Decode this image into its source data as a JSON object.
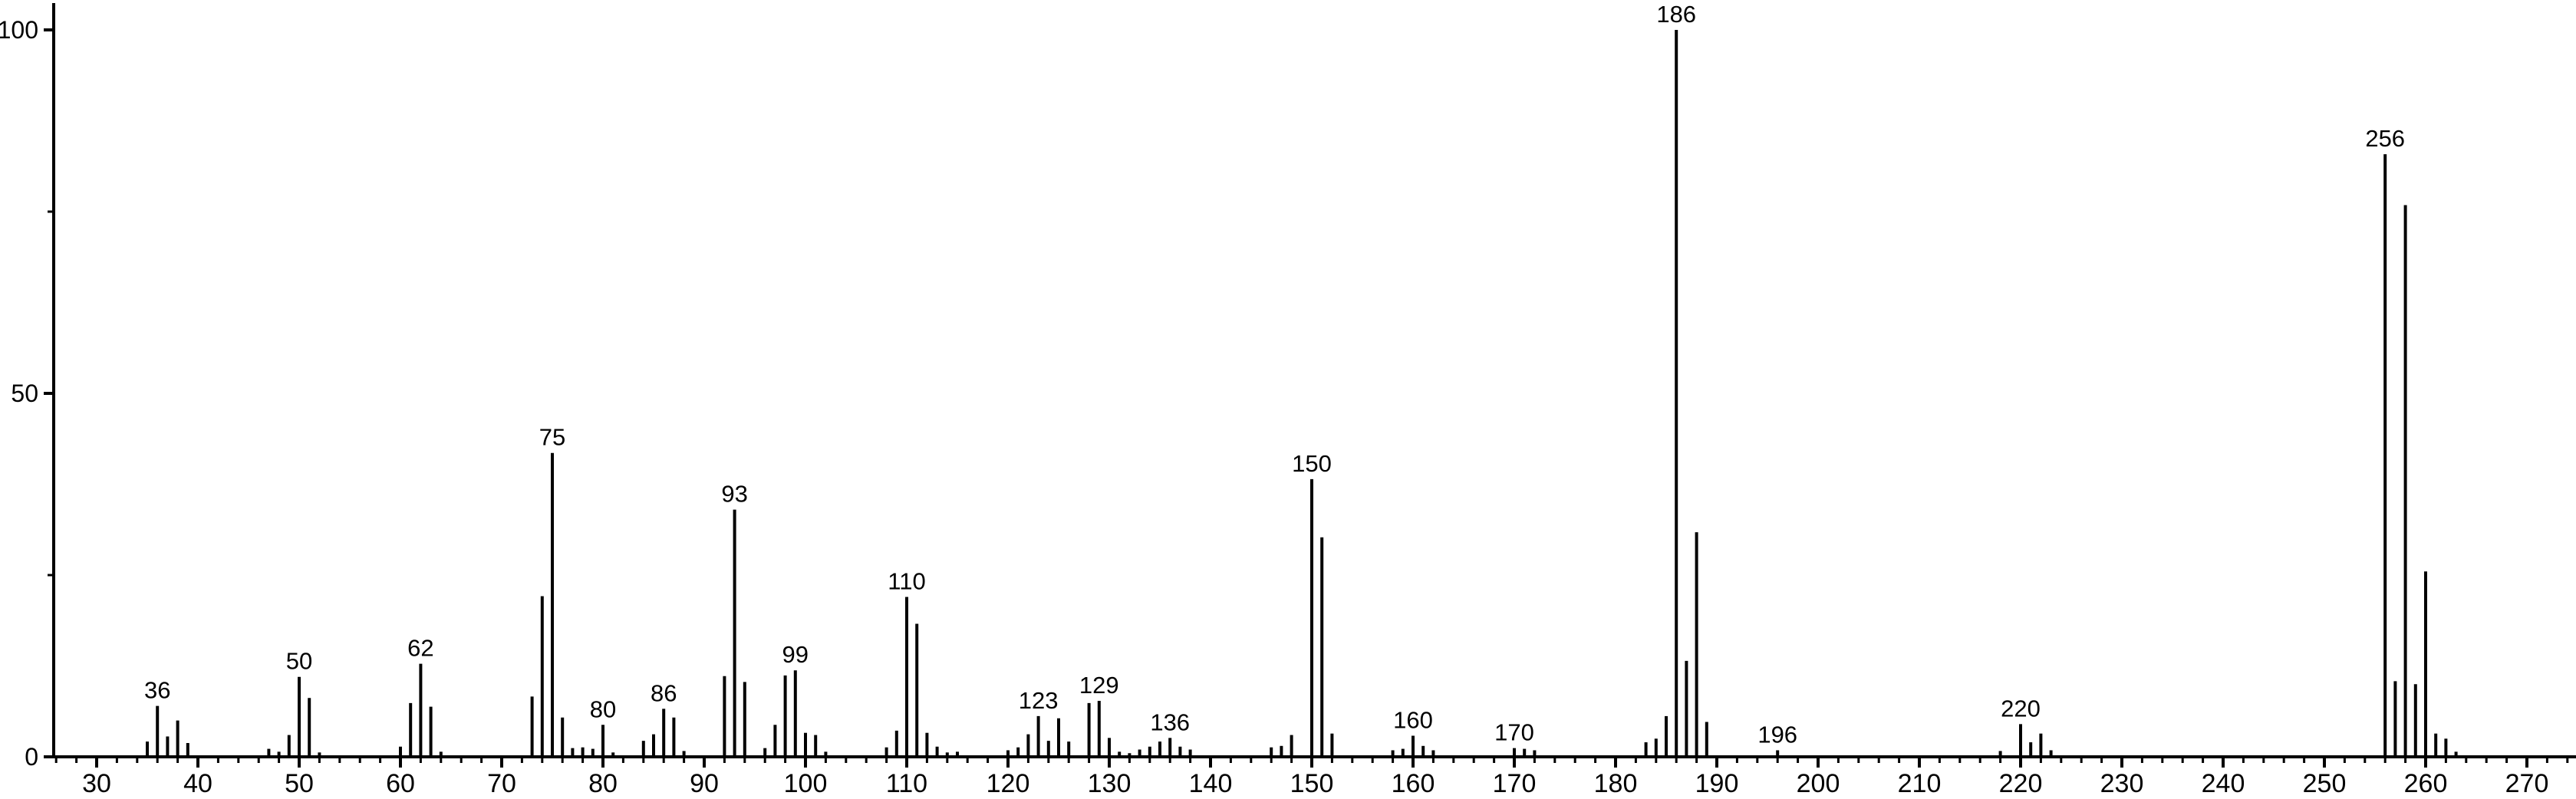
{
  "chart": {
    "background_color": "#ffffff",
    "foreground_color": "#000000"
  },
  "chart_data": {
    "type": "bar",
    "subtype": "mass-spectrum-stick-plot",
    "title": "",
    "xlabel": "",
    "ylabel": "",
    "xlim": [
      25.8,
      274.8
    ],
    "ylim": [
      0,
      104
    ],
    "grid": false,
    "legend": null,
    "x_axis": {
      "major_tick_labels": [
        30,
        40,
        50,
        60,
        70,
        80,
        90,
        100,
        110,
        120,
        130,
        140,
        150,
        160,
        170,
        180,
        190,
        200,
        210,
        220,
        230,
        240,
        250,
        260,
        270
      ],
      "major_tick_step": 10,
      "minor_tick_step": 2,
      "minor_tick_start": 26,
      "minor_tick_end": 274
    },
    "y_axis": {
      "major_tick_labels": [
        0,
        50,
        100
      ],
      "minor_ticks": [
        25,
        75
      ]
    },
    "peaks": [
      {
        "mz": 35,
        "intensity": 2.1
      },
      {
        "mz": 36,
        "intensity": 7.0
      },
      {
        "mz": 37,
        "intensity": 2.8
      },
      {
        "mz": 38,
        "intensity": 5.0
      },
      {
        "mz": 39,
        "intensity": 1.9
      },
      {
        "mz": 47,
        "intensity": 1.1
      },
      {
        "mz": 48,
        "intensity": 0.7
      },
      {
        "mz": 49,
        "intensity": 3.0
      },
      {
        "mz": 50,
        "intensity": 11.0
      },
      {
        "mz": 51,
        "intensity": 8.1
      },
      {
        "mz": 52,
        "intensity": 0.6
      },
      {
        "mz": 60,
        "intensity": 1.4
      },
      {
        "mz": 61,
        "intensity": 7.4
      },
      {
        "mz": 62,
        "intensity": 12.8
      },
      {
        "mz": 63,
        "intensity": 6.9
      },
      {
        "mz": 64,
        "intensity": 0.7
      },
      {
        "mz": 73,
        "intensity": 8.3
      },
      {
        "mz": 74,
        "intensity": 22.1
      },
      {
        "mz": 75,
        "intensity": 41.8
      },
      {
        "mz": 76,
        "intensity": 5.4
      },
      {
        "mz": 77,
        "intensity": 1.2
      },
      {
        "mz": 78,
        "intensity": 1.3
      },
      {
        "mz": 79,
        "intensity": 1.1
      },
      {
        "mz": 80,
        "intensity": 4.4
      },
      {
        "mz": 81,
        "intensity": 0.6
      },
      {
        "mz": 84,
        "intensity": 2.2
      },
      {
        "mz": 85,
        "intensity": 3.1
      },
      {
        "mz": 86,
        "intensity": 6.6
      },
      {
        "mz": 87,
        "intensity": 5.4
      },
      {
        "mz": 88,
        "intensity": 0.8
      },
      {
        "mz": 92,
        "intensity": 11.1
      },
      {
        "mz": 93,
        "intensity": 34.0
      },
      {
        "mz": 94,
        "intensity": 10.3
      },
      {
        "mz": 96,
        "intensity": 1.2
      },
      {
        "mz": 97,
        "intensity": 4.4
      },
      {
        "mz": 98,
        "intensity": 11.2
      },
      {
        "mz": 99,
        "intensity": 11.9
      },
      {
        "mz": 100,
        "intensity": 3.3
      },
      {
        "mz": 101,
        "intensity": 3.0
      },
      {
        "mz": 102,
        "intensity": 0.7
      },
      {
        "mz": 108,
        "intensity": 1.3
      },
      {
        "mz": 109,
        "intensity": 3.6
      },
      {
        "mz": 110,
        "intensity": 22.0
      },
      {
        "mz": 111,
        "intensity": 18.3
      },
      {
        "mz": 112,
        "intensity": 3.3
      },
      {
        "mz": 113,
        "intensity": 1.4
      },
      {
        "mz": 114,
        "intensity": 0.6
      },
      {
        "mz": 115,
        "intensity": 0.7
      },
      {
        "mz": 120,
        "intensity": 0.9
      },
      {
        "mz": 121,
        "intensity": 1.3
      },
      {
        "mz": 122,
        "intensity": 3.1
      },
      {
        "mz": 123,
        "intensity": 5.6
      },
      {
        "mz": 124,
        "intensity": 2.2
      },
      {
        "mz": 125,
        "intensity": 5.3
      },
      {
        "mz": 126,
        "intensity": 2.1
      },
      {
        "mz": 128,
        "intensity": 7.4
      },
      {
        "mz": 129,
        "intensity": 7.7
      },
      {
        "mz": 130,
        "intensity": 2.6
      },
      {
        "mz": 131,
        "intensity": 0.7
      },
      {
        "mz": 132,
        "intensity": 0.5
      },
      {
        "mz": 133,
        "intensity": 1.0
      },
      {
        "mz": 134,
        "intensity": 1.4
      },
      {
        "mz": 135,
        "intensity": 2.1
      },
      {
        "mz": 136,
        "intensity": 2.6
      },
      {
        "mz": 137,
        "intensity": 1.4
      },
      {
        "mz": 138,
        "intensity": 1.0
      },
      {
        "mz": 146,
        "intensity": 1.3
      },
      {
        "mz": 147,
        "intensity": 1.5
      },
      {
        "mz": 148,
        "intensity": 3.0
      },
      {
        "mz": 150,
        "intensity": 38.2
      },
      {
        "mz": 151,
        "intensity": 30.2
      },
      {
        "mz": 152,
        "intensity": 3.2
      },
      {
        "mz": 158,
        "intensity": 0.9
      },
      {
        "mz": 159,
        "intensity": 1.1
      },
      {
        "mz": 160,
        "intensity": 2.9
      },
      {
        "mz": 161,
        "intensity": 1.5
      },
      {
        "mz": 162,
        "intensity": 0.9
      },
      {
        "mz": 170,
        "intensity": 1.2
      },
      {
        "mz": 171,
        "intensity": 1.1
      },
      {
        "mz": 172,
        "intensity": 0.9
      },
      {
        "mz": 183,
        "intensity": 2.0
      },
      {
        "mz": 184,
        "intensity": 2.5
      },
      {
        "mz": 185,
        "intensity": 5.6
      },
      {
        "mz": 186,
        "intensity": 100.0
      },
      {
        "mz": 187,
        "intensity": 13.2
      },
      {
        "mz": 188,
        "intensity": 30.9
      },
      {
        "mz": 189,
        "intensity": 4.8
      },
      {
        "mz": 196,
        "intensity": 0.9
      },
      {
        "mz": 218,
        "intensity": 0.8
      },
      {
        "mz": 220,
        "intensity": 4.5
      },
      {
        "mz": 221,
        "intensity": 2.0
      },
      {
        "mz": 222,
        "intensity": 3.2
      },
      {
        "mz": 223,
        "intensity": 0.9
      },
      {
        "mz": 256,
        "intensity": 82.9
      },
      {
        "mz": 257,
        "intensity": 10.4
      },
      {
        "mz": 258,
        "intensity": 75.9
      },
      {
        "mz": 259,
        "intensity": 10.0
      },
      {
        "mz": 260,
        "intensity": 25.5
      },
      {
        "mz": 261,
        "intensity": 3.2
      },
      {
        "mz": 262,
        "intensity": 2.5
      },
      {
        "mz": 263,
        "intensity": 0.7
      }
    ],
    "labeled_peaks": [
      36,
      50,
      62,
      75,
      80,
      86,
      93,
      99,
      110,
      123,
      129,
      136,
      150,
      160,
      170,
      186,
      196,
      220,
      256
    ]
  }
}
